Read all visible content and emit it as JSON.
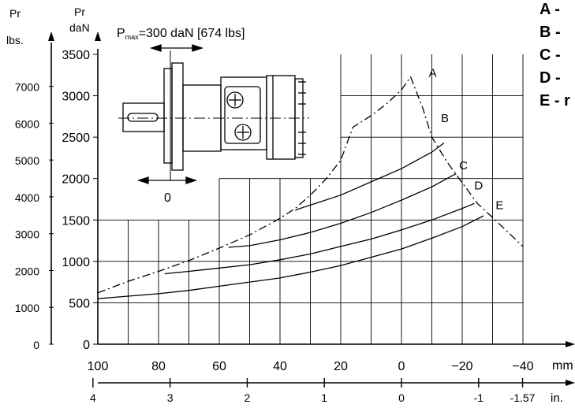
{
  "chart_data": {
    "type": "line",
    "title": "",
    "subtitle": "",
    "pmax_note": {
      "prefix": "P",
      "sub": "max",
      "text": "=300 daN [674 lbs]"
    },
    "y_left_lbs": {
      "label_top": "Pr",
      "label_bottom": "lbs.",
      "ticks": [
        0,
        1000,
        2000,
        3000,
        4000,
        5000,
        6000,
        7000
      ]
    },
    "y_right_dan": {
      "label_top": "Pr",
      "label_bottom": "daN",
      "ticks": [
        0,
        500,
        1000,
        1500,
        2000,
        2500,
        3000,
        3500
      ],
      "range": [
        0,
        3500
      ]
    },
    "x_mm": {
      "unit": "mm",
      "ticks": [
        100,
        80,
        60,
        40,
        20,
        0,
        -20,
        -40
      ],
      "tick_labels": [
        "100",
        "80",
        "60",
        "40",
        "20",
        "0",
        "−20",
        "−40"
      ],
      "range": [
        100,
        -40
      ]
    },
    "x_in": {
      "unit": "in.",
      "ticks": [
        4,
        3,
        2,
        1,
        0,
        -1,
        -1.57
      ],
      "tick_labels": [
        "4",
        "3",
        "2",
        "1",
        "0",
        "-1",
        "-1.57"
      ]
    },
    "inset_label": "0",
    "legend": [
      {
        "letter": "A",
        "suffix": "-"
      },
      {
        "letter": "B",
        "suffix": "-"
      },
      {
        "letter": "C",
        "suffix": "-"
      },
      {
        "letter": "D",
        "suffix": "-"
      },
      {
        "letter": "E",
        "suffix": "- r"
      }
    ],
    "series": [
      {
        "name": "A",
        "style": "dashdot",
        "x": [
          100,
          90,
          80,
          70,
          60,
          50,
          40,
          35,
          30,
          25,
          20,
          16,
          10,
          5,
          0,
          -3
        ],
        "y": [
          620,
          760,
          880,
          1010,
          1160,
          1320,
          1520,
          1640,
          1800,
          1990,
          2220,
          2620,
          2760,
          2900,
          3070,
          3230
        ]
      },
      {
        "name": "B",
        "style": "solid",
        "x": [
          35,
          30,
          20,
          10,
          0,
          -10,
          -14
        ],
        "y": [
          1620,
          1680,
          1800,
          1960,
          2120,
          2320,
          2430
        ]
      },
      {
        "name": "C",
        "style": "solid",
        "x": [
          57,
          50,
          40,
          30,
          20,
          10,
          0,
          -10,
          -18
        ],
        "y": [
          1170,
          1190,
          1260,
          1350,
          1460,
          1590,
          1740,
          1900,
          2060
        ]
      },
      {
        "name": "D",
        "style": "solid",
        "x": [
          78,
          70,
          60,
          50,
          40,
          30,
          20,
          10,
          0,
          -10,
          -20,
          -24
        ],
        "y": [
          850,
          880,
          920,
          960,
          1020,
          1090,
          1180,
          1270,
          1380,
          1500,
          1640,
          1700
        ]
      },
      {
        "name": "E",
        "style": "solid",
        "x": [
          100,
          90,
          80,
          70,
          60,
          50,
          40,
          30,
          20,
          10,
          0,
          -10,
          -20,
          -27
        ],
        "y": [
          550,
          580,
          610,
          650,
          700,
          750,
          800,
          870,
          950,
          1050,
          1150,
          1280,
          1420,
          1550
        ]
      },
      {
        "name": "limit",
        "style": "dashdot",
        "x": [
          -3,
          -7,
          -10,
          -15,
          -20,
          -25,
          -30,
          -40
        ],
        "y": [
          3230,
          2850,
          2500,
          2200,
          1950,
          1700,
          1530,
          1180
        ]
      }
    ],
    "labels_on_chart": [
      "A",
      "B",
      "C",
      "D",
      "E"
    ],
    "grid": true,
    "legend_position": "top-right"
  }
}
